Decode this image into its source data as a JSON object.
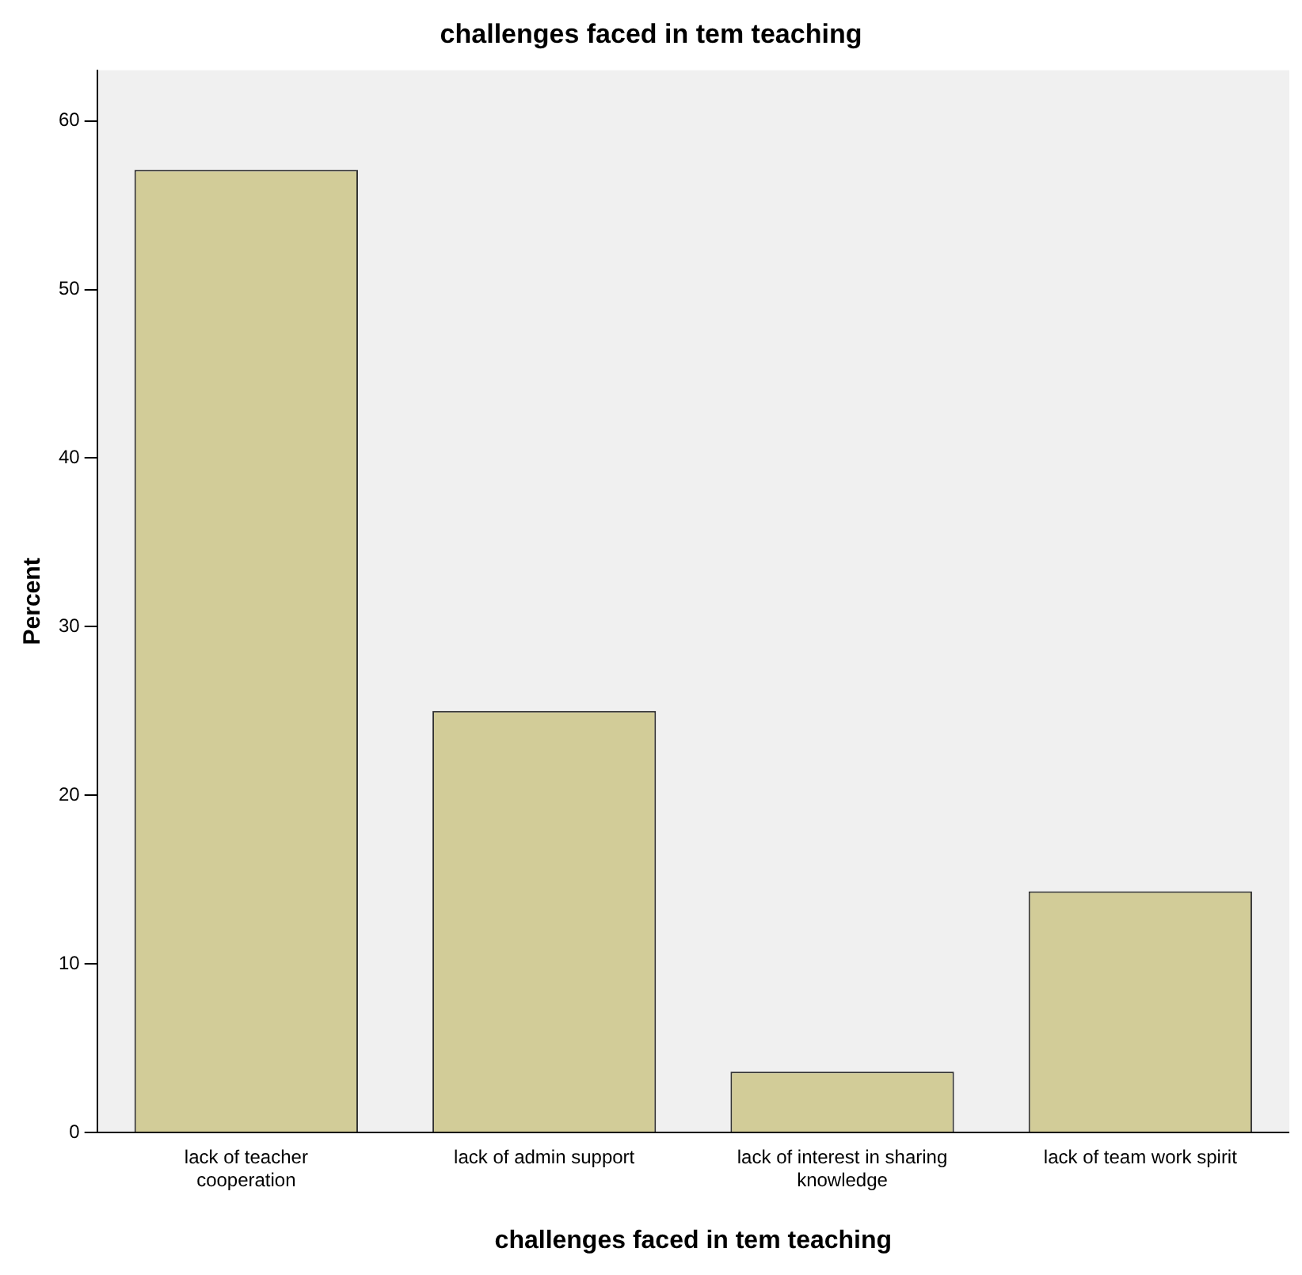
{
  "chart_data": {
    "type": "bar",
    "title": "challenges faced in tem teaching",
    "xlabel": "challenges faced in tem teaching",
    "ylabel": "Percent",
    "categories": [
      "lack of teacher\ncooperation",
      "lack of admin support",
      "lack of interest in sharing\nknowledge",
      "lack of team work spirit"
    ],
    "values": [
      57.1,
      25.0,
      3.6,
      14.3
    ],
    "color": "#d2cc98",
    "ylim": [
      0,
      63
    ],
    "yticks": [
      0,
      10,
      20,
      30,
      40,
      50,
      60
    ],
    "grid": false,
    "legend": false
  }
}
